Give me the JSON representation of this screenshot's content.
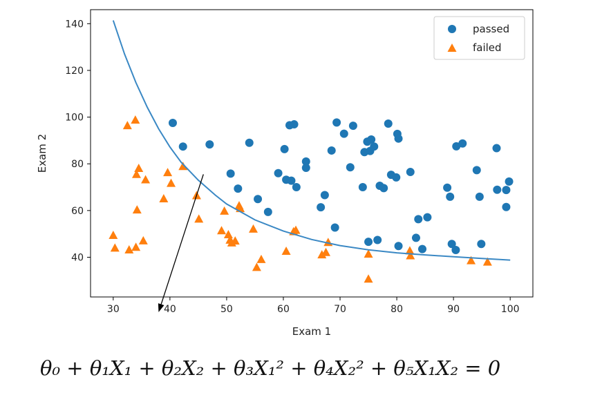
{
  "colors": {
    "passed": "#1f77b4",
    "failed": "#ff7f0e",
    "curve": "#3a88c4",
    "arrow": "#000000"
  },
  "equation": "θ₀ + θ₁X₁ + θ₂X₂ + θ₃X₁² + θ₄X₂² + θ₅X₁X₂ = 0",
  "chart_data": {
    "type": "scatter",
    "xlabel": "Exam 1",
    "ylabel": "Exam 2",
    "xlim": [
      26,
      104
    ],
    "ylim": [
      23,
      146
    ],
    "xticks": [
      30,
      40,
      50,
      60,
      70,
      80,
      90,
      100
    ],
    "yticks": [
      40,
      60,
      80,
      100,
      120,
      140
    ],
    "grid": false,
    "legend": "top-right",
    "series": [
      {
        "name": "passed",
        "marker": "circle",
        "points": [
          [
            40.5,
            97.5
          ],
          [
            42.3,
            87.4
          ],
          [
            47.0,
            88.3
          ],
          [
            50.7,
            75.8
          ],
          [
            52.0,
            69.4
          ],
          [
            54.0,
            89.0
          ],
          [
            55.5,
            64.9
          ],
          [
            57.3,
            59.4
          ],
          [
            59.1,
            76.0
          ],
          [
            60.2,
            86.3
          ],
          [
            60.5,
            73.2
          ],
          [
            61.1,
            96.5
          ],
          [
            61.4,
            72.8
          ],
          [
            61.9,
            96.9
          ],
          [
            62.3,
            70.0
          ],
          [
            64.0,
            81.0
          ],
          [
            64.0,
            78.3
          ],
          [
            66.6,
            61.4
          ],
          [
            67.3,
            66.6
          ],
          [
            68.5,
            85.7
          ],
          [
            69.1,
            52.7
          ],
          [
            69.4,
            97.7
          ],
          [
            70.7,
            92.9
          ],
          [
            71.8,
            78.5
          ],
          [
            72.3,
            96.3
          ],
          [
            74.0,
            70.0
          ],
          [
            74.3,
            85.0
          ],
          [
            74.8,
            89.5
          ],
          [
            75.0,
            46.6
          ],
          [
            75.3,
            85.5
          ],
          [
            75.5,
            90.4
          ],
          [
            76.0,
            87.4
          ],
          [
            76.6,
            47.4
          ],
          [
            77.0,
            70.6
          ],
          [
            77.7,
            69.6
          ],
          [
            78.5,
            97.2
          ],
          [
            79.0,
            75.3
          ],
          [
            79.9,
            74.2
          ],
          [
            80.1,
            92.8
          ],
          [
            80.3,
            90.8
          ],
          [
            80.3,
            44.8
          ],
          [
            82.4,
            76.5
          ],
          [
            83.4,
            48.3
          ],
          [
            83.8,
            56.3
          ],
          [
            84.5,
            43.5
          ],
          [
            85.4,
            57.1
          ],
          [
            88.9,
            69.8
          ],
          [
            89.4,
            65.9
          ],
          [
            89.7,
            45.7
          ],
          [
            90.4,
            43.1
          ],
          [
            90.5,
            87.5
          ],
          [
            91.6,
            88.7
          ],
          [
            94.1,
            77.3
          ],
          [
            94.6,
            65.9
          ],
          [
            94.9,
            45.7
          ],
          [
            97.6,
            86.7
          ],
          [
            97.7,
            68.9
          ],
          [
            99.3,
            68.8
          ],
          [
            99.3,
            61.5
          ],
          [
            99.8,
            72.4
          ]
        ]
      },
      {
        "name": "failed",
        "marker": "triangle",
        "points": [
          [
            30.0,
            49.3
          ],
          [
            30.3,
            43.9
          ],
          [
            32.5,
            96.3
          ],
          [
            32.8,
            43.1
          ],
          [
            33.9,
            98.7
          ],
          [
            34.0,
            44.2
          ],
          [
            34.1,
            75.4
          ],
          [
            34.2,
            60.2
          ],
          [
            34.5,
            78.0
          ],
          [
            35.3,
            47.0
          ],
          [
            35.7,
            73.1
          ],
          [
            38.9,
            65.0
          ],
          [
            39.6,
            76.2
          ],
          [
            40.2,
            71.6
          ],
          [
            42.3,
            78.8
          ],
          [
            44.7,
            66.3
          ],
          [
            45.1,
            56.3
          ],
          [
            49.1,
            51.3
          ],
          [
            49.6,
            59.7
          ],
          [
            50.3,
            49.6
          ],
          [
            50.6,
            47.3
          ],
          [
            50.9,
            46.1
          ],
          [
            51.5,
            46.9
          ],
          [
            52.2,
            62.0
          ],
          [
            52.4,
            60.8
          ],
          [
            54.7,
            52.0
          ],
          [
            55.3,
            35.6
          ],
          [
            56.1,
            39.0
          ],
          [
            60.5,
            42.5
          ],
          [
            61.8,
            50.9
          ],
          [
            62.2,
            51.5
          ],
          [
            66.8,
            41.0
          ],
          [
            67.5,
            42.0
          ],
          [
            67.9,
            46.3
          ],
          [
            75.0,
            41.3
          ],
          [
            75.0,
            30.6
          ],
          [
            82.3,
            42.7
          ],
          [
            82.4,
            40.6
          ],
          [
            93.1,
            38.5
          ],
          [
            96.0,
            37.9
          ]
        ]
      }
    ],
    "decision_boundary": {
      "x": [
        30,
        32,
        34,
        36,
        38,
        40,
        42,
        45,
        48,
        50,
        55,
        60,
        65,
        70,
        75,
        80,
        85,
        90,
        95,
        100
      ],
      "y": [
        141.4,
        127.0,
        114.8,
        104.2,
        95.0,
        87.2,
        80.6,
        73.0,
        66.6,
        62.8,
        56.0,
        51.2,
        47.6,
        45.0,
        43.2,
        41.9,
        41.0,
        40.2,
        39.5,
        38.8
      ]
    },
    "annotation_arrow": {
      "from": [
        45.9,
        75.5
      ],
      "to": [
        38.0,
        16.5
      ]
    }
  }
}
